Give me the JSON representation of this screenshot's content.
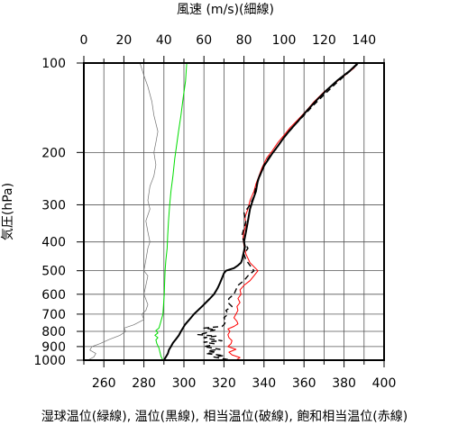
{
  "chart_data": {
    "type": "line",
    "top_axis": {
      "label": "風速 (m/s)(細線)",
      "range": [
        0,
        150
      ],
      "ticks": [
        0,
        20,
        40,
        60,
        80,
        100,
        120,
        140
      ]
    },
    "bottom_axis": {
      "label": "湿球温位(緑線), 温位(黒線), 相当温位(破線), 飽和相当温位(赤線)",
      "range": [
        250,
        400
      ],
      "ticks": [
        260,
        280,
        300,
        320,
        340,
        360,
        380,
        400
      ]
    },
    "y_axis": {
      "label": "気圧(hPa)",
      "scale": "log",
      "range": [
        1000,
        100
      ],
      "ticks": [
        100,
        200,
        300,
        400,
        500,
        600,
        700,
        800,
        900,
        1000
      ]
    },
    "grid": true,
    "series": [
      {
        "key": "wind_speed",
        "axis": "top",
        "color": "#707070",
        "width": 0.7,
        "dash": "",
        "points": [
          [
            2,
            1000
          ],
          [
            5,
            975
          ],
          [
            6,
            950
          ],
          [
            3,
            925
          ],
          [
            4,
            900
          ],
          [
            8,
            880
          ],
          [
            13,
            850
          ],
          [
            18,
            825
          ],
          [
            21,
            800
          ],
          [
            20,
            780
          ],
          [
            25,
            760
          ],
          [
            30,
            730
          ],
          [
            29,
            700
          ],
          [
            31,
            680
          ],
          [
            32,
            650
          ],
          [
            30,
            600
          ],
          [
            31,
            560
          ],
          [
            32,
            520
          ],
          [
            30,
            500
          ],
          [
            31,
            460
          ],
          [
            32,
            420
          ],
          [
            33,
            400
          ],
          [
            32,
            370
          ],
          [
            31,
            340
          ],
          [
            33,
            310
          ],
          [
            32,
            290
          ],
          [
            33,
            260
          ],
          [
            35,
            240
          ],
          [
            36,
            220
          ],
          [
            35,
            200
          ],
          [
            36,
            185
          ],
          [
            37,
            170
          ],
          [
            35,
            150
          ],
          [
            34,
            135
          ],
          [
            32,
            120
          ],
          [
            30,
            110
          ],
          [
            28,
            100
          ]
        ]
      },
      {
        "key": "wet_bulb_potential_temperature",
        "axis": "bottom",
        "color": "#00dd00",
        "width": 1,
        "dash": "",
        "points": [
          [
            289.5,
            1000
          ],
          [
            288.5,
            970
          ],
          [
            288,
            940
          ],
          [
            287.5,
            910
          ],
          [
            286.5,
            880
          ],
          [
            286,
            855
          ],
          [
            287,
            840
          ],
          [
            285.5,
            825
          ],
          [
            287,
            810
          ],
          [
            286,
            795
          ],
          [
            287.5,
            780
          ],
          [
            288,
            760
          ],
          [
            288.5,
            740
          ],
          [
            289,
            720
          ],
          [
            289.5,
            700
          ],
          [
            289.8,
            650
          ],
          [
            290.2,
            600
          ],
          [
            290.3,
            560
          ],
          [
            290.6,
            500
          ],
          [
            291,
            460
          ],
          [
            291.6,
            420
          ],
          [
            291.9,
            380
          ],
          [
            292.3,
            340
          ],
          [
            292.9,
            300
          ],
          [
            293.5,
            270
          ],
          [
            294.5,
            240
          ],
          [
            295.4,
            210
          ],
          [
            296.3,
            190
          ],
          [
            297.3,
            170
          ],
          [
            298.5,
            150
          ],
          [
            299.7,
            130
          ],
          [
            300.8,
            115
          ],
          [
            301.4,
            100
          ]
        ]
      },
      {
        "key": "saturated_equivalent_potential_temperature",
        "axis": "bottom",
        "color": "#ff0000",
        "width": 1,
        "dash": "",
        "points": [
          [
            326,
            1000
          ],
          [
            328,
            980
          ],
          [
            324,
            960
          ],
          [
            322.5,
            940
          ],
          [
            326,
            920
          ],
          [
            322,
            900
          ],
          [
            323.5,
            880
          ],
          [
            324,
            860
          ],
          [
            322.5,
            840
          ],
          [
            322,
            820
          ],
          [
            323,
            800
          ],
          [
            322,
            785
          ],
          [
            325,
            770
          ],
          [
            327,
            755
          ],
          [
            326.5,
            740
          ],
          [
            325,
            720
          ],
          [
            326,
            700
          ],
          [
            327,
            680
          ],
          [
            326.5,
            660
          ],
          [
            328,
            640
          ],
          [
            327,
            620
          ],
          [
            328.5,
            600
          ],
          [
            328,
            580
          ],
          [
            330,
            560
          ],
          [
            333,
            540
          ],
          [
            335,
            520
          ],
          [
            337,
            500
          ],
          [
            333,
            470
          ],
          [
            331,
            440
          ],
          [
            330,
            410
          ],
          [
            329.5,
            390
          ],
          [
            330,
            370
          ],
          [
            331,
            350
          ],
          [
            330.5,
            330
          ],
          [
            332,
            310
          ],
          [
            333,
            290
          ],
          [
            335,
            270
          ],
          [
            336,
            255
          ],
          [
            337,
            245
          ],
          [
            339,
            225
          ],
          [
            341.5,
            208
          ],
          [
            344,
            198
          ],
          [
            347,
            185
          ],
          [
            350,
            175
          ],
          [
            353,
            165
          ],
          [
            357,
            155
          ],
          [
            361,
            145
          ],
          [
            365,
            135
          ],
          [
            370,
            125
          ],
          [
            376,
            116
          ],
          [
            382,
            108
          ],
          [
            385,
            104
          ],
          [
            387,
            100
          ]
        ]
      },
      {
        "key": "equivalent_potential_temperature",
        "axis": "bottom",
        "color": "#000000",
        "width": 1.4,
        "dash": "6,4",
        "points": [
          [
            322,
            995
          ],
          [
            318,
            985
          ],
          [
            315,
            975
          ],
          [
            320,
            965
          ],
          [
            311,
            950
          ],
          [
            316,
            940
          ],
          [
            312,
            930
          ],
          [
            318,
            920
          ],
          [
            314,
            910
          ],
          [
            310,
            900
          ],
          [
            314,
            890
          ],
          [
            315,
            880
          ],
          [
            310,
            870
          ],
          [
            319,
            860
          ],
          [
            314,
            850
          ],
          [
            310,
            840
          ],
          [
            316,
            830
          ],
          [
            307,
            820
          ],
          [
            311,
            810
          ],
          [
            312,
            800
          ],
          [
            316,
            790
          ],
          [
            310,
            780
          ],
          [
            319,
            770
          ],
          [
            320,
            760
          ],
          [
            321,
            740
          ],
          [
            320,
            720
          ],
          [
            322,
            700
          ],
          [
            321,
            680
          ],
          [
            324,
            660
          ],
          [
            322,
            640
          ],
          [
            322.5,
            620
          ],
          [
            325,
            600
          ],
          [
            326,
            580
          ],
          [
            327,
            560
          ],
          [
            330,
            540
          ],
          [
            332,
            520
          ],
          [
            335,
            500
          ],
          [
            333,
            480
          ],
          [
            331,
            460
          ],
          [
            330,
            440
          ],
          [
            332,
            420
          ],
          [
            330,
            400
          ],
          [
            329,
            380
          ],
          [
            330,
            360
          ],
          [
            331,
            340
          ],
          [
            330,
            320
          ],
          [
            333,
            300
          ],
          [
            335,
            280
          ],
          [
            336,
            260
          ],
          [
            338,
            240
          ],
          [
            340,
            220
          ],
          [
            343,
            205
          ],
          [
            346,
            195
          ],
          [
            349,
            182
          ],
          [
            352,
            172
          ],
          [
            356,
            160
          ],
          [
            360,
            150
          ],
          [
            365,
            138
          ],
          [
            370,
            128
          ],
          [
            376,
            117
          ],
          [
            382,
            108
          ],
          [
            386,
            102
          ],
          [
            388,
            100
          ]
        ]
      },
      {
        "key": "potential_temperature",
        "axis": "bottom",
        "color": "#000000",
        "width": 2,
        "dash": "",
        "points": [
          [
            290,
            1000
          ],
          [
            291,
            975
          ],
          [
            292,
            950
          ],
          [
            292.5,
            925
          ],
          [
            293.5,
            900
          ],
          [
            294.5,
            875
          ],
          [
            296,
            850
          ],
          [
            297.5,
            825
          ],
          [
            298.5,
            800
          ],
          [
            299.5,
            780
          ],
          [
            300.5,
            760
          ],
          [
            302,
            740
          ],
          [
            303.5,
            720
          ],
          [
            305,
            700
          ],
          [
            307,
            680
          ],
          [
            309,
            660
          ],
          [
            311,
            640
          ],
          [
            313,
            620
          ],
          [
            315,
            600
          ],
          [
            316,
            585
          ],
          [
            317,
            570
          ],
          [
            318,
            550
          ],
          [
            319,
            530
          ],
          [
            320,
            510
          ],
          [
            321,
            500
          ],
          [
            323,
            495
          ],
          [
            325,
            490
          ],
          [
            327,
            480
          ],
          [
            328.5,
            470
          ],
          [
            329,
            460
          ],
          [
            329.5,
            445
          ],
          [
            330,
            430
          ],
          [
            330.5,
            415
          ],
          [
            330,
            400
          ],
          [
            330.5,
            385
          ],
          [
            331,
            370
          ],
          [
            331.5,
            355
          ],
          [
            332,
            340
          ],
          [
            332.5,
            325
          ],
          [
            333,
            310
          ],
          [
            334,
            295
          ],
          [
            335,
            282
          ],
          [
            336,
            270
          ],
          [
            336.5,
            258
          ],
          [
            337,
            248
          ],
          [
            338,
            238
          ],
          [
            339,
            230
          ],
          [
            340,
            222
          ],
          [
            342,
            212
          ],
          [
            344,
            202
          ],
          [
            347,
            190
          ],
          [
            350,
            178
          ],
          [
            353,
            168
          ],
          [
            357,
            157
          ],
          [
            361,
            146
          ],
          [
            366,
            134
          ],
          [
            371,
            124
          ],
          [
            377,
            114
          ],
          [
            383,
            106
          ],
          [
            387,
            100
          ]
        ]
      }
    ]
  }
}
